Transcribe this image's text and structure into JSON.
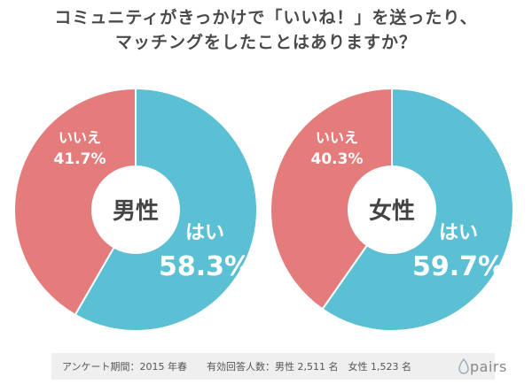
{
  "title": {
    "line1": "コミュニティがきっかけで「いいね！」を送ったり、",
    "line2": "マッチングをしたことはありますか？"
  },
  "chart_data": [
    {
      "type": "pie",
      "center_label": "男性",
      "slices": [
        {
          "label": "はい",
          "value": 58.3,
          "display": "58.3%"
        },
        {
          "label": "いいえ",
          "value": 41.7,
          "display": "41.7%"
        }
      ]
    },
    {
      "type": "pie",
      "center_label": "女性",
      "slices": [
        {
          "label": "はい",
          "value": 59.7,
          "display": "59.7%"
        },
        {
          "label": "いいえ",
          "value": 40.3,
          "display": "40.3%"
        }
      ]
    }
  ],
  "colors": {
    "yes": "#5bc0d3",
    "no": "#e47c7c",
    "center": "#ffffff"
  },
  "footer": {
    "survey_period": "アンケート期間：2015 年春",
    "respondents": "有効回答人数：男性 2,511 名　女性 1,523 名"
  },
  "logo": {
    "text": "pairs",
    "icon": "pairs-drop-icon"
  }
}
